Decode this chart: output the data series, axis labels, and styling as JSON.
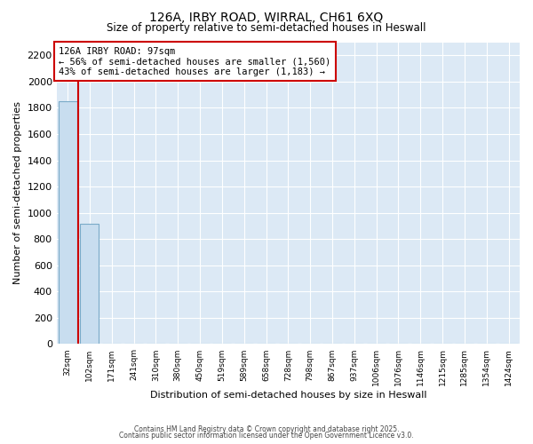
{
  "title1": "126A, IRBY ROAD, WIRRAL, CH61 6XQ",
  "title2": "Size of property relative to semi-detached houses in Heswall",
  "xlabel": "Distribution of semi-detached houses by size in Heswall",
  "ylabel": "Number of semi-detached properties",
  "annotation_title": "126A IRBY ROAD: 97sqm",
  "annotation_line1": "← 56% of semi-detached houses are smaller (1,560)",
  "annotation_line2": "43% of semi-detached houses are larger (1,183) →",
  "categories": [
    "32sqm",
    "102sqm",
    "171sqm",
    "241sqm",
    "310sqm",
    "380sqm",
    "450sqm",
    "519sqm",
    "589sqm",
    "658sqm",
    "728sqm",
    "798sqm",
    "867sqm",
    "937sqm",
    "1006sqm",
    "1076sqm",
    "1146sqm",
    "1215sqm",
    "1285sqm",
    "1354sqm",
    "1424sqm"
  ],
  "values": [
    1850,
    916,
    0,
    0,
    0,
    0,
    0,
    0,
    0,
    0,
    0,
    0,
    0,
    0,
    0,
    0,
    0,
    0,
    0,
    0,
    0
  ],
  "bar_color": "#c8ddef",
  "bar_edge_color": "#7aaac8",
  "plot_bg_color": "#dce9f5",
  "fig_bg_color": "#ffffff",
  "grid_color": "#ffffff",
  "property_line_color": "#cc0000",
  "property_line_x": 0.5,
  "ylim": [
    0,
    2300
  ],
  "yticks": [
    0,
    200,
    400,
    600,
    800,
    1000,
    1200,
    1400,
    1600,
    1800,
    2000,
    2200
  ],
  "footnote1": "Contains HM Land Registry data © Crown copyright and database right 2025.",
  "footnote2": "Contains public sector information licensed under the Open Government Licence v3.0."
}
